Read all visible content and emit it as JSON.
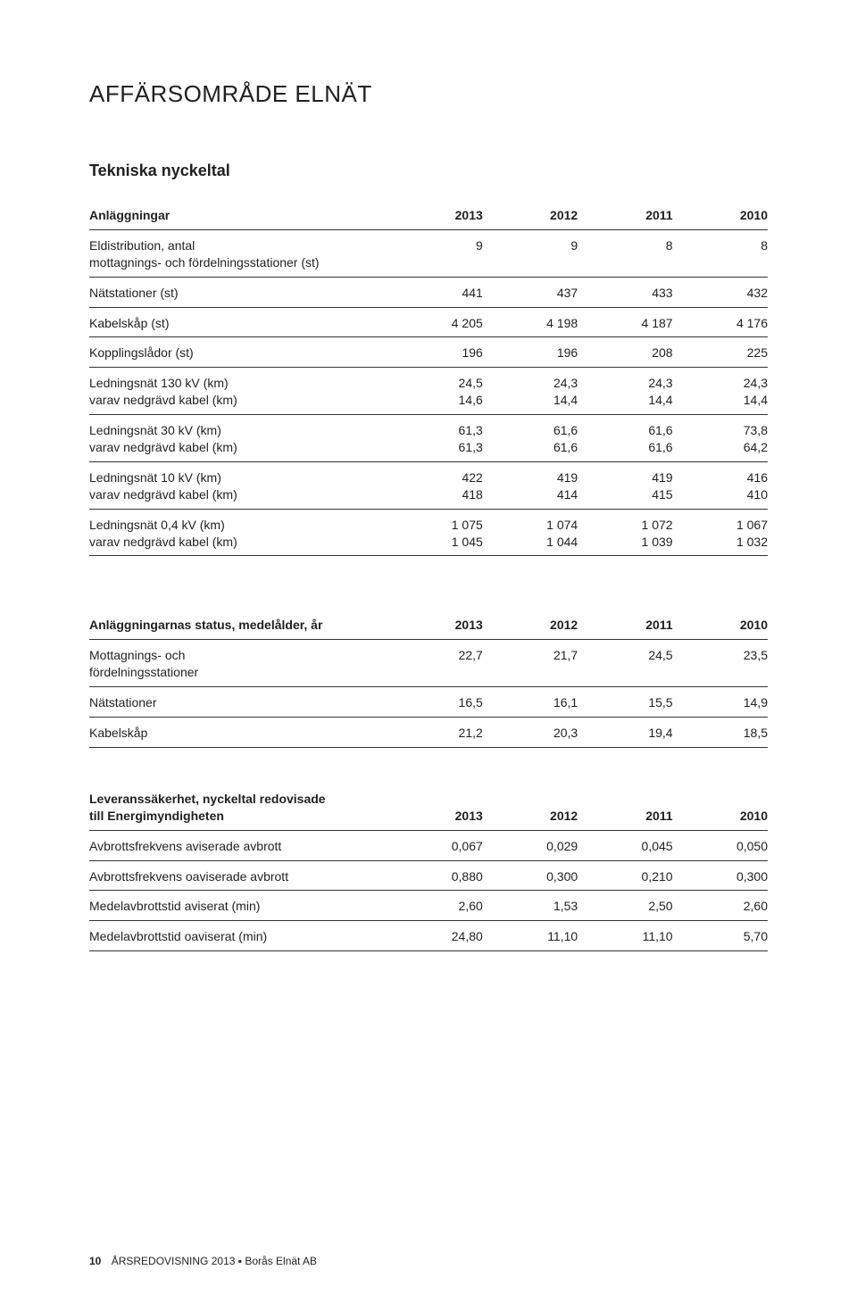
{
  "page": {
    "title": "AFFÄRSOMRÅDE ELNÄT",
    "section1_title": "Tekniska nyckeltal",
    "footer_page_number": "10",
    "footer_text": "ÅRSREDOVISNING 2013 ▪ Borås Elnät AB"
  },
  "colors": {
    "text": "#231f20",
    "rule": "#333333",
    "background": "#ffffff"
  },
  "table_anlaggningar": {
    "header": [
      "Anläggningar",
      "2013",
      "2012",
      "2011",
      "2010"
    ],
    "rows": [
      {
        "labels": [
          "Eldistribution, antal",
          "mottagnings- och fördelningsstationer (st)"
        ],
        "values": [
          "9",
          "9",
          "8",
          "8"
        ]
      },
      {
        "labels": [
          "Nätstationer (st)"
        ],
        "values": [
          "441",
          "437",
          "433",
          "432"
        ]
      },
      {
        "labels": [
          "Kabelskåp (st)"
        ],
        "values": [
          "4 205",
          "4 198",
          "4 187",
          "4 176"
        ]
      },
      {
        "labels": [
          "Kopplingslådor (st)"
        ],
        "values": [
          "196",
          "196",
          "208",
          "225"
        ]
      },
      {
        "labels": [
          "Ledningsnät 130 kV (km)",
          "varav nedgrävd kabel  (km)"
        ],
        "values_row1": [
          "24,5",
          "24,3",
          "24,3",
          "24,3"
        ],
        "values_row2": [
          "14,6",
          "14,4",
          "14,4",
          "14,4"
        ]
      },
      {
        "labels": [
          "Ledningsnät 30 kV (km)",
          "varav nedgrävd kabel (km)"
        ],
        "values_row1": [
          "61,3",
          "61,6",
          "61,6",
          "73,8"
        ],
        "values_row2": [
          "61,3",
          "61,6",
          "61,6",
          "64,2"
        ]
      },
      {
        "labels": [
          "Ledningsnät 10 kV (km)",
          "varav nedgrävd kabel (km)"
        ],
        "values_row1": [
          "422",
          "419",
          "419",
          "416"
        ],
        "values_row2": [
          "418",
          "414",
          "415",
          "410"
        ]
      },
      {
        "labels": [
          "Ledningsnät 0,4 kV (km)",
          "varav nedgrävd kabel (km)"
        ],
        "values_row1": [
          "1 075",
          "1 074",
          "1 072",
          "1 067"
        ],
        "values_row2": [
          "1 045",
          "1 044",
          "1 039",
          "1 032"
        ]
      }
    ]
  },
  "table_status": {
    "header": [
      "Anläggningarnas status, medelålder, år",
      "2013",
      "2012",
      "2011",
      "2010"
    ],
    "rows": [
      {
        "labels": [
          "Mottagnings- och",
          "fördelningsstationer"
        ],
        "values": [
          "22,7",
          "21,7",
          "24,5",
          "23,5"
        ]
      },
      {
        "labels": [
          "Nätstationer"
        ],
        "values": [
          "16,5",
          "16,1",
          "15,5",
          "14,9"
        ]
      },
      {
        "labels": [
          "Kabelskåp"
        ],
        "values": [
          "21,2",
          "20,3",
          "19,4",
          "18,5"
        ]
      }
    ]
  },
  "table_leverans": {
    "header": [
      "Leveranssäkerhet, nyckeltal redovisade",
      "till Energimyndigheten",
      "2013",
      "2012",
      "2011",
      "2010"
    ],
    "rows": [
      {
        "labels": [
          "Avbrottsfrekvens aviserade avbrott"
        ],
        "values": [
          "0,067",
          "0,029",
          "0,045",
          "0,050"
        ]
      },
      {
        "labels": [
          "Avbrottsfrekvens oaviserade avbrott"
        ],
        "values": [
          "0,880",
          "0,300",
          "0,210",
          "0,300"
        ]
      },
      {
        "labels": [
          "Medelavbrottstid aviserat (min)"
        ],
        "values": [
          "2,60",
          "1,53",
          "2,50",
          "2,60"
        ]
      },
      {
        "labels": [
          "Medelavbrottstid oaviserat (min)"
        ],
        "values": [
          "24,80",
          "11,10",
          "11,10",
          "5,70"
        ]
      }
    ]
  }
}
